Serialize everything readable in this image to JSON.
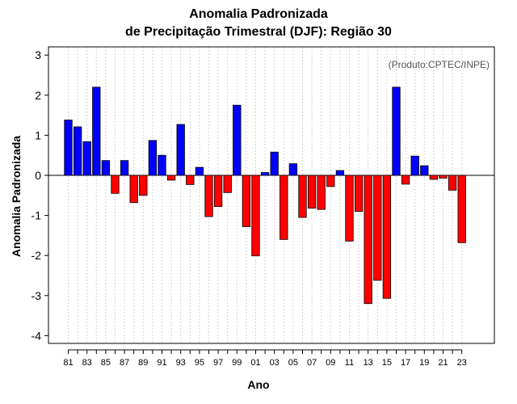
{
  "chart_data": {
    "type": "bar",
    "title": "Anomalia Padronizada",
    "subtitle": "de Precipitação Trimestral (DJF): Região 30",
    "xlabel": "Ano",
    "ylabel": "Anomalia Padronizada",
    "annotation": "(Produto:CPTEC/INPE)",
    "ylim": [
      -4.2,
      3.2
    ],
    "yticks": [
      -4,
      -3,
      -2,
      -1,
      0,
      1,
      2,
      3
    ],
    "categories": [
      "81",
      "82",
      "83",
      "84",
      "85",
      "86",
      "87",
      "88",
      "89",
      "90",
      "91",
      "92",
      "93",
      "94",
      "95",
      "96",
      "97",
      "98",
      "99",
      "00",
      "01",
      "02",
      "03",
      "04",
      "05",
      "06",
      "07",
      "08",
      "09",
      "10",
      "11",
      "12",
      "13",
      "14",
      "15",
      "16",
      "17",
      "18",
      "19",
      "20",
      "21",
      "22",
      "23"
    ],
    "tick_labels": [
      "81",
      "83",
      "85",
      "87",
      "89",
      "91",
      "93",
      "95",
      "97",
      "99",
      "01",
      "03",
      "05",
      "07",
      "09",
      "11",
      "13",
      "15",
      "17",
      "19",
      "21",
      "23"
    ],
    "values": [
      1.38,
      1.21,
      0.84,
      2.2,
      0.37,
      -0.45,
      0.37,
      -0.68,
      -0.5,
      0.87,
      0.5,
      -0.12,
      1.27,
      -0.23,
      0.2,
      -1.03,
      -0.78,
      -0.43,
      1.75,
      -1.28,
      -2.01,
      0.07,
      0.58,
      -1.6,
      0.29,
      -1.05,
      -0.82,
      -0.85,
      -0.28,
      0.12,
      -1.64,
      -0.9,
      -3.2,
      -2.62,
      -3.07,
      2.2,
      -0.22,
      0.48,
      0.24,
      -0.1,
      -0.07,
      -0.37,
      -1.68
    ],
    "colors": {
      "positive": "#0000ff",
      "negative": "#ff0000",
      "zero_line": "#000000",
      "grid": "#d3d3d3",
      "frame": "#000000"
    }
  }
}
